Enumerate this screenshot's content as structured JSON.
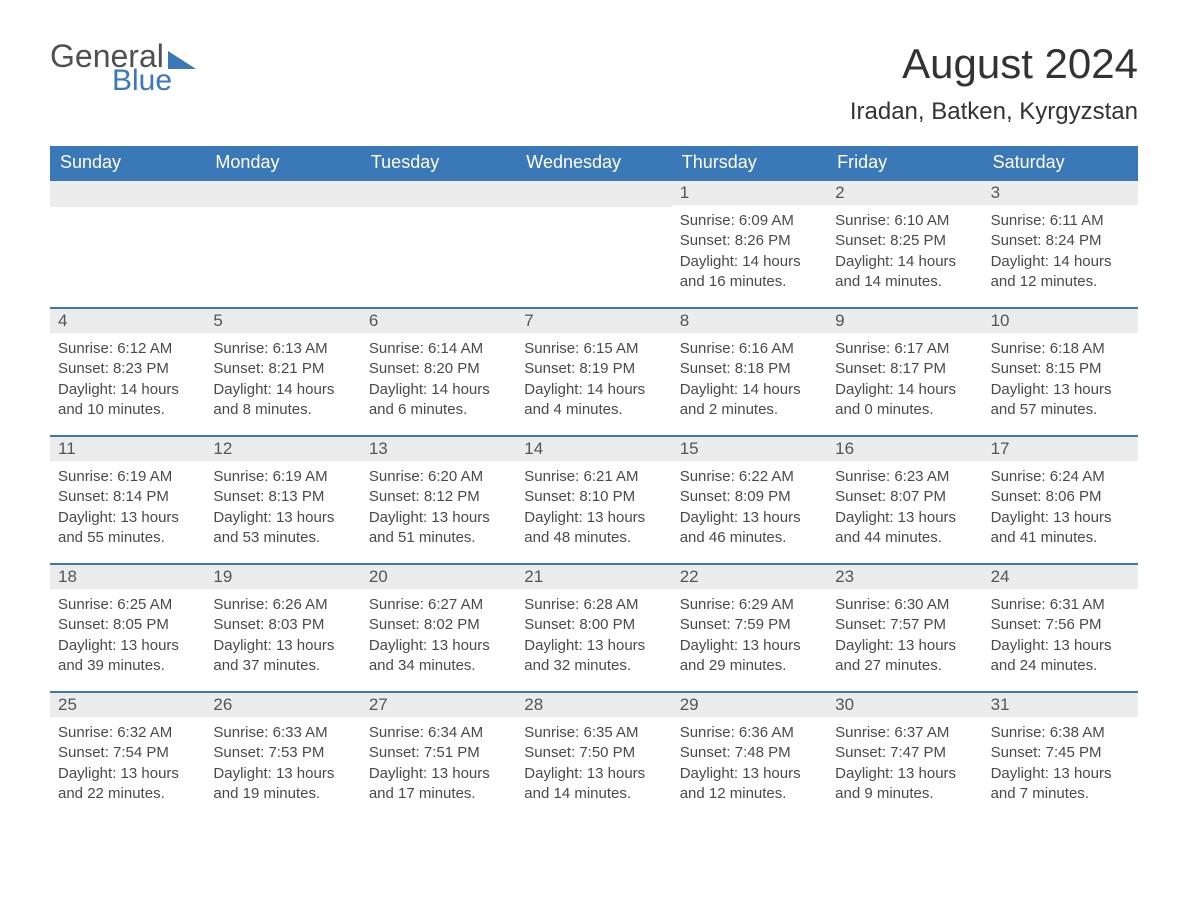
{
  "logo": {
    "text_general": "General",
    "text_blue": "Blue"
  },
  "header": {
    "month_title": "August 2024",
    "location": "Iradan, Batken, Kyrgyzstan"
  },
  "colors": {
    "header_bg": "#3b78b8",
    "header_text": "#ffffff",
    "daynum_bg": "#ececec",
    "border": "#3b78b8",
    "body_text": "#4a4a4a"
  },
  "weekdays": [
    "Sunday",
    "Monday",
    "Tuesday",
    "Wednesday",
    "Thursday",
    "Friday",
    "Saturday"
  ],
  "weeks": [
    [
      null,
      null,
      null,
      null,
      {
        "n": "1",
        "sunrise": "Sunrise: 6:09 AM",
        "sunset": "Sunset: 8:26 PM",
        "day1": "Daylight: 14 hours",
        "day2": "and 16 minutes."
      },
      {
        "n": "2",
        "sunrise": "Sunrise: 6:10 AM",
        "sunset": "Sunset: 8:25 PM",
        "day1": "Daylight: 14 hours",
        "day2": "and 14 minutes."
      },
      {
        "n": "3",
        "sunrise": "Sunrise: 6:11 AM",
        "sunset": "Sunset: 8:24 PM",
        "day1": "Daylight: 14 hours",
        "day2": "and 12 minutes."
      }
    ],
    [
      {
        "n": "4",
        "sunrise": "Sunrise: 6:12 AM",
        "sunset": "Sunset: 8:23 PM",
        "day1": "Daylight: 14 hours",
        "day2": "and 10 minutes."
      },
      {
        "n": "5",
        "sunrise": "Sunrise: 6:13 AM",
        "sunset": "Sunset: 8:21 PM",
        "day1": "Daylight: 14 hours",
        "day2": "and 8 minutes."
      },
      {
        "n": "6",
        "sunrise": "Sunrise: 6:14 AM",
        "sunset": "Sunset: 8:20 PM",
        "day1": "Daylight: 14 hours",
        "day2": "and 6 minutes."
      },
      {
        "n": "7",
        "sunrise": "Sunrise: 6:15 AM",
        "sunset": "Sunset: 8:19 PM",
        "day1": "Daylight: 14 hours",
        "day2": "and 4 minutes."
      },
      {
        "n": "8",
        "sunrise": "Sunrise: 6:16 AM",
        "sunset": "Sunset: 8:18 PM",
        "day1": "Daylight: 14 hours",
        "day2": "and 2 minutes."
      },
      {
        "n": "9",
        "sunrise": "Sunrise: 6:17 AM",
        "sunset": "Sunset: 8:17 PM",
        "day1": "Daylight: 14 hours",
        "day2": "and 0 minutes."
      },
      {
        "n": "10",
        "sunrise": "Sunrise: 6:18 AM",
        "sunset": "Sunset: 8:15 PM",
        "day1": "Daylight: 13 hours",
        "day2": "and 57 minutes."
      }
    ],
    [
      {
        "n": "11",
        "sunrise": "Sunrise: 6:19 AM",
        "sunset": "Sunset: 8:14 PM",
        "day1": "Daylight: 13 hours",
        "day2": "and 55 minutes."
      },
      {
        "n": "12",
        "sunrise": "Sunrise: 6:19 AM",
        "sunset": "Sunset: 8:13 PM",
        "day1": "Daylight: 13 hours",
        "day2": "and 53 minutes."
      },
      {
        "n": "13",
        "sunrise": "Sunrise: 6:20 AM",
        "sunset": "Sunset: 8:12 PM",
        "day1": "Daylight: 13 hours",
        "day2": "and 51 minutes."
      },
      {
        "n": "14",
        "sunrise": "Sunrise: 6:21 AM",
        "sunset": "Sunset: 8:10 PM",
        "day1": "Daylight: 13 hours",
        "day2": "and 48 minutes."
      },
      {
        "n": "15",
        "sunrise": "Sunrise: 6:22 AM",
        "sunset": "Sunset: 8:09 PM",
        "day1": "Daylight: 13 hours",
        "day2": "and 46 minutes."
      },
      {
        "n": "16",
        "sunrise": "Sunrise: 6:23 AM",
        "sunset": "Sunset: 8:07 PM",
        "day1": "Daylight: 13 hours",
        "day2": "and 44 minutes."
      },
      {
        "n": "17",
        "sunrise": "Sunrise: 6:24 AM",
        "sunset": "Sunset: 8:06 PM",
        "day1": "Daylight: 13 hours",
        "day2": "and 41 minutes."
      }
    ],
    [
      {
        "n": "18",
        "sunrise": "Sunrise: 6:25 AM",
        "sunset": "Sunset: 8:05 PM",
        "day1": "Daylight: 13 hours",
        "day2": "and 39 minutes."
      },
      {
        "n": "19",
        "sunrise": "Sunrise: 6:26 AM",
        "sunset": "Sunset: 8:03 PM",
        "day1": "Daylight: 13 hours",
        "day2": "and 37 minutes."
      },
      {
        "n": "20",
        "sunrise": "Sunrise: 6:27 AM",
        "sunset": "Sunset: 8:02 PM",
        "day1": "Daylight: 13 hours",
        "day2": "and 34 minutes."
      },
      {
        "n": "21",
        "sunrise": "Sunrise: 6:28 AM",
        "sunset": "Sunset: 8:00 PM",
        "day1": "Daylight: 13 hours",
        "day2": "and 32 minutes."
      },
      {
        "n": "22",
        "sunrise": "Sunrise: 6:29 AM",
        "sunset": "Sunset: 7:59 PM",
        "day1": "Daylight: 13 hours",
        "day2": "and 29 minutes."
      },
      {
        "n": "23",
        "sunrise": "Sunrise: 6:30 AM",
        "sunset": "Sunset: 7:57 PM",
        "day1": "Daylight: 13 hours",
        "day2": "and 27 minutes."
      },
      {
        "n": "24",
        "sunrise": "Sunrise: 6:31 AM",
        "sunset": "Sunset: 7:56 PM",
        "day1": "Daylight: 13 hours",
        "day2": "and 24 minutes."
      }
    ],
    [
      {
        "n": "25",
        "sunrise": "Sunrise: 6:32 AM",
        "sunset": "Sunset: 7:54 PM",
        "day1": "Daylight: 13 hours",
        "day2": "and 22 minutes."
      },
      {
        "n": "26",
        "sunrise": "Sunrise: 6:33 AM",
        "sunset": "Sunset: 7:53 PM",
        "day1": "Daylight: 13 hours",
        "day2": "and 19 minutes."
      },
      {
        "n": "27",
        "sunrise": "Sunrise: 6:34 AM",
        "sunset": "Sunset: 7:51 PM",
        "day1": "Daylight: 13 hours",
        "day2": "and 17 minutes."
      },
      {
        "n": "28",
        "sunrise": "Sunrise: 6:35 AM",
        "sunset": "Sunset: 7:50 PM",
        "day1": "Daylight: 13 hours",
        "day2": "and 14 minutes."
      },
      {
        "n": "29",
        "sunrise": "Sunrise: 6:36 AM",
        "sunset": "Sunset: 7:48 PM",
        "day1": "Daylight: 13 hours",
        "day2": "and 12 minutes."
      },
      {
        "n": "30",
        "sunrise": "Sunrise: 6:37 AM",
        "sunset": "Sunset: 7:47 PM",
        "day1": "Daylight: 13 hours",
        "day2": "and 9 minutes."
      },
      {
        "n": "31",
        "sunrise": "Sunrise: 6:38 AM",
        "sunset": "Sunset: 7:45 PM",
        "day1": "Daylight: 13 hours",
        "day2": "and 7 minutes."
      }
    ]
  ]
}
